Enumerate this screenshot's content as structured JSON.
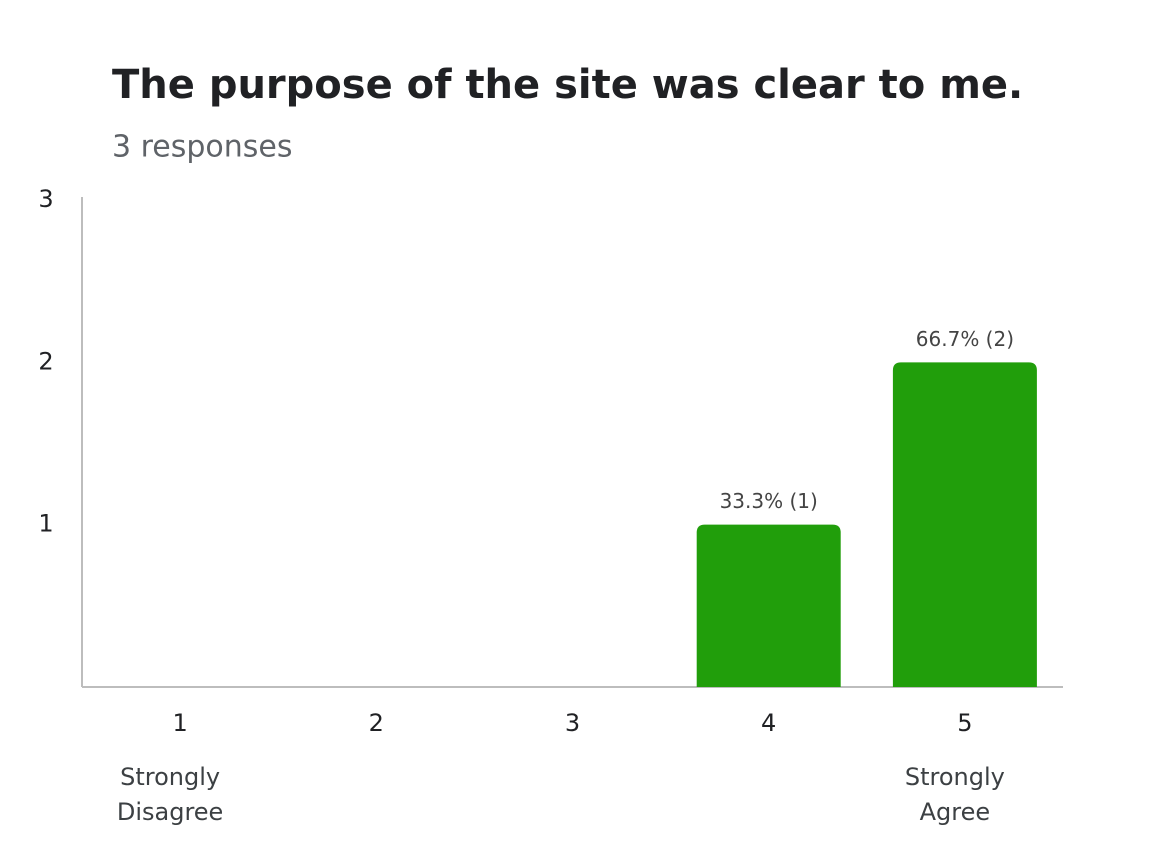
{
  "chart_data": {
    "type": "bar",
    "title": "The purpose of the site was clear to me.",
    "subtitle": "3 responses",
    "categories": [
      "1",
      "2",
      "3",
      "4",
      "5"
    ],
    "category_sublabels": [
      "Strongly Disagree",
      null,
      null,
      null,
      "Strongly Agree"
    ],
    "values": [
      0,
      0,
      0,
      1,
      2
    ],
    "value_labels": [
      null,
      null,
      null,
      "33.3% (1)",
      "66.7% (2)"
    ],
    "color": "#219e0b",
    "ylim": [
      0,
      3
    ],
    "yticks": [
      1,
      2,
      3
    ],
    "grid": false
  }
}
